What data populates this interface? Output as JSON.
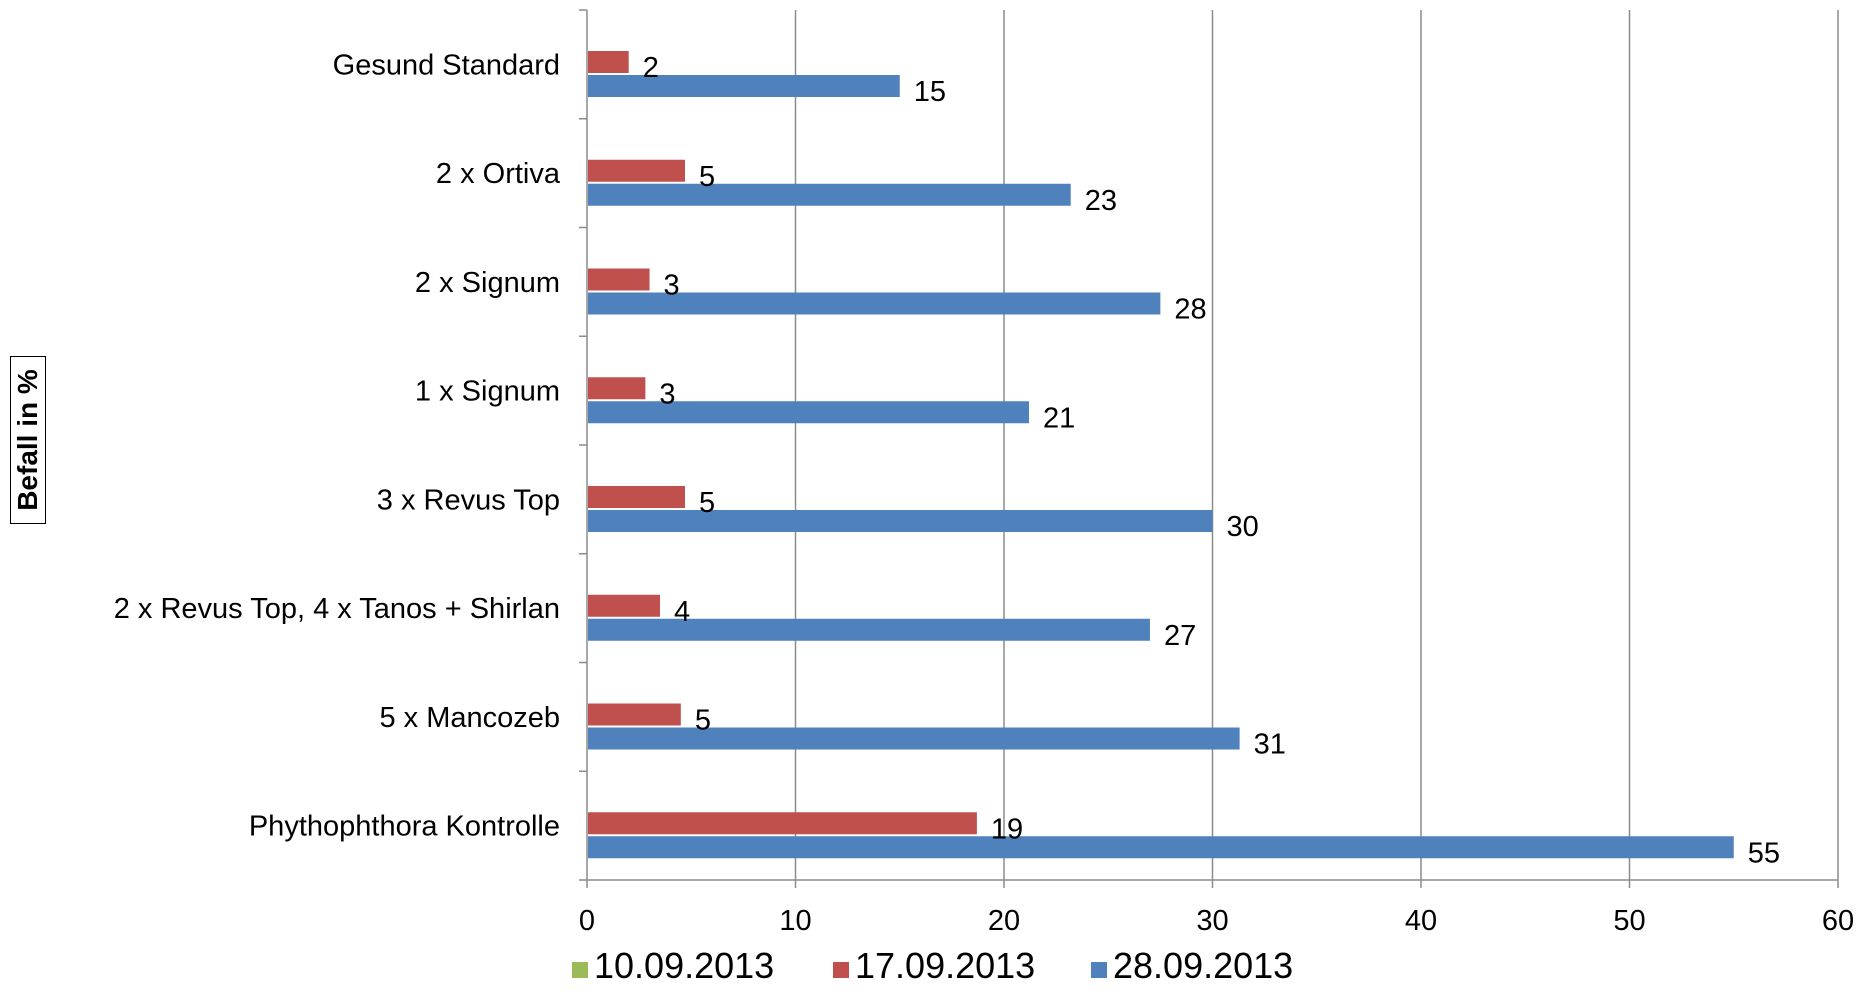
{
  "chart_data": {
    "type": "bar",
    "orientation": "horizontal",
    "categories": [
      "Gesund Standard",
      "2 x Ortiva",
      "2 x Signum",
      "1 x Signum",
      "3 x Revus Top",
      "2 x Revus Top, 4 x Tanos + Shirlan",
      "5 x Mancozeb",
      "Phythophthora Kontrolle"
    ],
    "series": [
      {
        "name": "10.09.2013",
        "color": "#9bbb59",
        "values": [
          0,
          0,
          0,
          0,
          0,
          0,
          0,
          0
        ],
        "labels": [
          "",
          "",
          "",
          "",
          "",
          "",
          "",
          ""
        ]
      },
      {
        "name": "17.09.2013",
        "color": "#c0504d",
        "values": [
          2,
          4.7,
          3,
          2.8,
          4.7,
          3.5,
          4.5,
          18.7
        ],
        "labels": [
          "2",
          "5",
          "3",
          "3",
          "5",
          "4",
          "5",
          "19"
        ]
      },
      {
        "name": "28.09.2013",
        "color": "#4f81bd",
        "values": [
          15,
          23.2,
          27.5,
          21.2,
          30,
          27,
          31.3,
          55
        ],
        "labels": [
          "15",
          "23",
          "28",
          "21",
          "30",
          "27",
          "31",
          "55"
        ]
      }
    ],
    "xlim": [
      0,
      60
    ],
    "xticks": [
      "0",
      "10",
      "20",
      "30",
      "40",
      "50",
      "60"
    ],
    "ylabel": "Befall in %",
    "legend": "bottom",
    "grid": true
  }
}
